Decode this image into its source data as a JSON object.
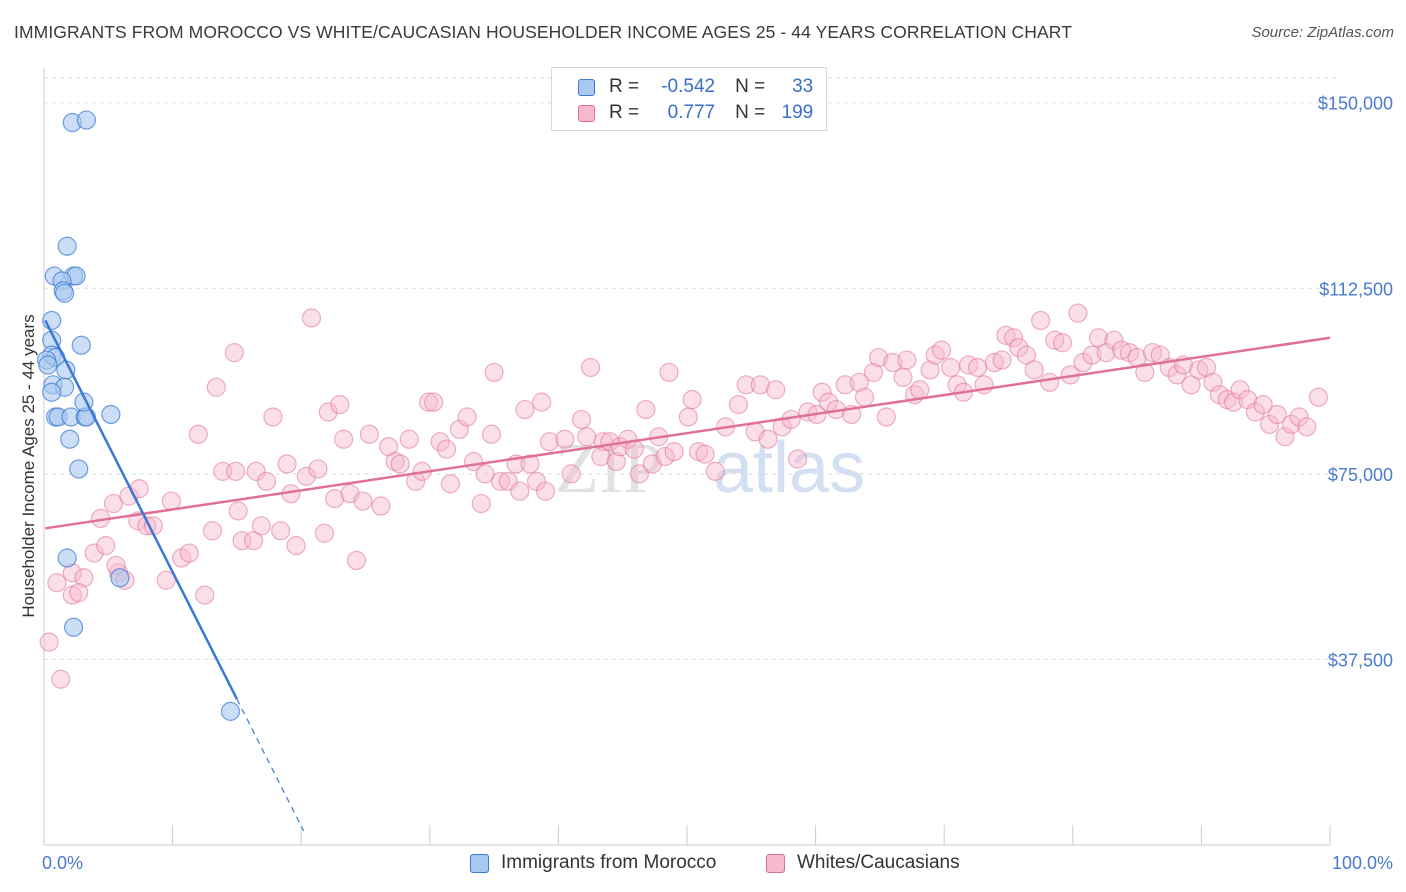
{
  "title": "IMMIGRANTS FROM MOROCCO VS WHITE/CAUCASIAN HOUSEHOLDER INCOME AGES 25 - 44 YEARS CORRELATION CHART",
  "source": "Source: ZipAtlas.com",
  "watermark": {
    "zip": "ZIP",
    "atlas": "atlas"
  },
  "colors": {
    "blue": "#3a78d4",
    "blue_fill": "#a9c8f0",
    "pink": "#e0709a",
    "pink_fill": "#f7b9cd",
    "axis_text": "#4a7bd0",
    "grid": "#dddddd"
  },
  "legend": {
    "rows": [
      {
        "r_label": "R =",
        "r_value": "-0.542",
        "n_label": "N =",
        "n_value": "33"
      },
      {
        "r_label": "R =",
        "r_value": "0.777",
        "n_label": "N =",
        "n_value": "199"
      }
    ]
  },
  "bottom_legend": [
    "Immigrants from Morocco",
    "Whites/Caucasians"
  ],
  "chart_data": {
    "type": "scatter",
    "title": "IMMIGRANTS FROM MOROCCO VS WHITE/CAUCASIAN HOUSEHOLDER INCOME AGES 25 - 44 YEARS CORRELATION CHART",
    "xlabel": "",
    "ylabel": "Householder Income Ages 25 - 44 years",
    "xlim": [
      0,
      100
    ],
    "ylim": [
      0,
      155000
    ],
    "x_tick_labels": [
      "0.0%",
      "100.0%"
    ],
    "y_ticks": [
      37500,
      75000,
      112500,
      150000
    ],
    "y_tick_labels": [
      "$37,500",
      "$75,000",
      "$112,500",
      "$150,000"
    ],
    "series": [
      {
        "name": "Immigrants from Morocco",
        "r": -0.542,
        "n": 33,
        "trend": {
          "x0": 0.1,
          "y0": 106000,
          "x1": 15.0,
          "y1": 29500,
          "dash_to_x": 20.2
        },
        "points": [
          [
            2.2,
            146000
          ],
          [
            3.3,
            146500
          ],
          [
            1.8,
            121000
          ],
          [
            0.8,
            115000
          ],
          [
            2.3,
            115000
          ],
          [
            2.5,
            115000
          ],
          [
            1.4,
            114000
          ],
          [
            1.5,
            112000
          ],
          [
            1.6,
            111500
          ],
          [
            0.6,
            106000
          ],
          [
            0.6,
            102000
          ],
          [
            2.9,
            101000
          ],
          [
            0.6,
            99000
          ],
          [
            0.9,
            98500
          ],
          [
            0.2,
            98000
          ],
          [
            0.3,
            97000
          ],
          [
            1.7,
            96000
          ],
          [
            0.7,
            93000
          ],
          [
            1.6,
            92500
          ],
          [
            0.6,
            91500
          ],
          [
            0.9,
            86500
          ],
          [
            1.1,
            86500
          ],
          [
            2.1,
            86500
          ],
          [
            3.2,
            86500
          ],
          [
            3.3,
            86500
          ],
          [
            5.2,
            87000
          ],
          [
            3.1,
            89500
          ],
          [
            2.0,
            82000
          ],
          [
            2.7,
            76000
          ],
          [
            1.8,
            58000
          ],
          [
            5.9,
            54000
          ],
          [
            2.3,
            44000
          ],
          [
            14.5,
            27000
          ]
        ]
      },
      {
        "name": "Whites/Caucasians",
        "r": 0.777,
        "n": 199,
        "trend": {
          "x0": 0.1,
          "y0": 64000,
          "x1": 100,
          "y1": 102500
        },
        "points": [
          [
            0.4,
            41000
          ],
          [
            1.3,
            33500
          ],
          [
            1.0,
            53000
          ],
          [
            2.2,
            55000
          ],
          [
            2.2,
            50500
          ],
          [
            3.1,
            54000
          ],
          [
            2.7,
            51000
          ],
          [
            3.9,
            59000
          ],
          [
            4.4,
            66000
          ],
          [
            4.8,
            60500
          ],
          [
            5.4,
            69000
          ],
          [
            5.8,
            55000
          ],
          [
            6.3,
            53500
          ],
          [
            5.6,
            56500
          ],
          [
            6.6,
            70500
          ],
          [
            7.4,
            72000
          ],
          [
            7.3,
            65500
          ],
          [
            8.0,
            64500
          ],
          [
            8.5,
            64500
          ],
          [
            9.9,
            69500
          ],
          [
            9.5,
            53500
          ],
          [
            10.7,
            58000
          ],
          [
            11.3,
            59000
          ],
          [
            12.0,
            83000
          ],
          [
            12.5,
            50500
          ],
          [
            13.1,
            63500
          ],
          [
            13.4,
            92500
          ],
          [
            13.9,
            75500
          ],
          [
            14.8,
            99500
          ],
          [
            14.9,
            75500
          ],
          [
            15.1,
            67500
          ],
          [
            15.4,
            61500
          ],
          [
            16.3,
            61500
          ],
          [
            16.5,
            75500
          ],
          [
            16.9,
            64500
          ],
          [
            17.3,
            73500
          ],
          [
            17.8,
            86500
          ],
          [
            18.4,
            63500
          ],
          [
            18.9,
            77000
          ],
          [
            19.2,
            71000
          ],
          [
            19.6,
            60500
          ],
          [
            20.4,
            74500
          ],
          [
            20.8,
            106500
          ],
          [
            21.3,
            76000
          ],
          [
            21.8,
            63000
          ],
          [
            22.1,
            87500
          ],
          [
            22.6,
            70000
          ],
          [
            23.0,
            89000
          ],
          [
            23.3,
            82000
          ],
          [
            23.8,
            71000
          ],
          [
            24.3,
            57500
          ],
          [
            24.8,
            69500
          ],
          [
            25.3,
            83000
          ],
          [
            26.2,
            68500
          ],
          [
            26.8,
            80500
          ],
          [
            27.3,
            77500
          ],
          [
            27.7,
            77000
          ],
          [
            28.4,
            82000
          ],
          [
            28.9,
            73500
          ],
          [
            29.4,
            75500
          ],
          [
            29.9,
            89500
          ],
          [
            30.3,
            89500
          ],
          [
            30.8,
            81500
          ],
          [
            31.3,
            80000
          ],
          [
            31.6,
            73000
          ],
          [
            32.3,
            84000
          ],
          [
            32.9,
            86500
          ],
          [
            33.4,
            77500
          ],
          [
            34.0,
            69000
          ],
          [
            34.3,
            75000
          ],
          [
            34.8,
            83000
          ],
          [
            35.0,
            95500
          ],
          [
            35.5,
            73500
          ],
          [
            36.1,
            73500
          ],
          [
            36.7,
            77000
          ],
          [
            37.0,
            71500
          ],
          [
            37.4,
            88000
          ],
          [
            37.8,
            77000
          ],
          [
            38.3,
            73500
          ],
          [
            38.7,
            89500
          ],
          [
            39.0,
            71500
          ],
          [
            39.3,
            81500
          ],
          [
            40.5,
            82000
          ],
          [
            41.0,
            75000
          ],
          [
            41.8,
            86000
          ],
          [
            42.2,
            82500
          ],
          [
            42.5,
            96500
          ],
          [
            43.5,
            81500
          ],
          [
            43.3,
            78500
          ],
          [
            44.0,
            81500
          ],
          [
            44.5,
            77500
          ],
          [
            44.8,
            80500
          ],
          [
            45.4,
            82000
          ],
          [
            45.9,
            80000
          ],
          [
            46.3,
            75000
          ],
          [
            46.8,
            88000
          ],
          [
            47.3,
            77000
          ],
          [
            47.8,
            82500
          ],
          [
            48.3,
            78500
          ],
          [
            48.6,
            95500
          ],
          [
            49.0,
            79500
          ],
          [
            50.1,
            86500
          ],
          [
            50.4,
            90000
          ],
          [
            50.9,
            79500
          ],
          [
            51.4,
            79000
          ],
          [
            52.2,
            75500
          ],
          [
            53.0,
            84500
          ],
          [
            54.0,
            89000
          ],
          [
            54.6,
            93000
          ],
          [
            55.3,
            83500
          ],
          [
            55.7,
            93000
          ],
          [
            56.3,
            82000
          ],
          [
            56.9,
            92000
          ],
          [
            57.4,
            84500
          ],
          [
            58.1,
            86000
          ],
          [
            58.6,
            78000
          ],
          [
            59.4,
            87500
          ],
          [
            60.1,
            87000
          ],
          [
            60.5,
            91500
          ],
          [
            61.0,
            89500
          ],
          [
            61.6,
            88000
          ],
          [
            62.3,
            93000
          ],
          [
            62.8,
            87000
          ],
          [
            63.4,
            93500
          ],
          [
            63.8,
            90500
          ],
          [
            64.5,
            95500
          ],
          [
            64.9,
            98500
          ],
          [
            65.5,
            86500
          ],
          [
            66.0,
            97500
          ],
          [
            66.8,
            94500
          ],
          [
            67.1,
            98000
          ],
          [
            67.7,
            91000
          ],
          [
            68.1,
            92000
          ],
          [
            68.9,
            96000
          ],
          [
            69.3,
            99000
          ],
          [
            69.8,
            100000
          ],
          [
            70.5,
            96500
          ],
          [
            71.0,
            93000
          ],
          [
            71.5,
            91500
          ],
          [
            71.9,
            97000
          ],
          [
            72.6,
            96500
          ],
          [
            73.1,
            93000
          ],
          [
            73.9,
            97500
          ],
          [
            74.5,
            98000
          ],
          [
            74.8,
            103000
          ],
          [
            75.4,
            102500
          ],
          [
            75.8,
            100500
          ],
          [
            76.4,
            99000
          ],
          [
            77.0,
            96000
          ],
          [
            77.5,
            106000
          ],
          [
            78.2,
            93500
          ],
          [
            78.6,
            102000
          ],
          [
            79.2,
            101500
          ],
          [
            79.8,
            95000
          ],
          [
            80.4,
            107500
          ],
          [
            80.8,
            97500
          ],
          [
            81.5,
            99000
          ],
          [
            82.0,
            102500
          ],
          [
            82.6,
            99500
          ],
          [
            83.2,
            102000
          ],
          [
            83.8,
            100000
          ],
          [
            84.4,
            99500
          ],
          [
            85.0,
            98500
          ],
          [
            85.6,
            95500
          ],
          [
            86.2,
            99500
          ],
          [
            86.8,
            99000
          ],
          [
            87.5,
            96500
          ],
          [
            88.1,
            95000
          ],
          [
            88.6,
            97000
          ],
          [
            89.2,
            93000
          ],
          [
            89.8,
            96000
          ],
          [
            90.4,
            96500
          ],
          [
            90.9,
            93500
          ],
          [
            91.4,
            91000
          ],
          [
            92.0,
            90000
          ],
          [
            92.5,
            89500
          ],
          [
            93.0,
            92000
          ],
          [
            93.6,
            90000
          ],
          [
            94.2,
            87500
          ],
          [
            94.8,
            89000
          ],
          [
            95.3,
            85000
          ],
          [
            95.9,
            87000
          ],
          [
            96.5,
            82500
          ],
          [
            97.0,
            85000
          ],
          [
            97.6,
            86500
          ],
          [
            98.2,
            84500
          ],
          [
            99.1,
            90500
          ]
        ]
      }
    ]
  }
}
